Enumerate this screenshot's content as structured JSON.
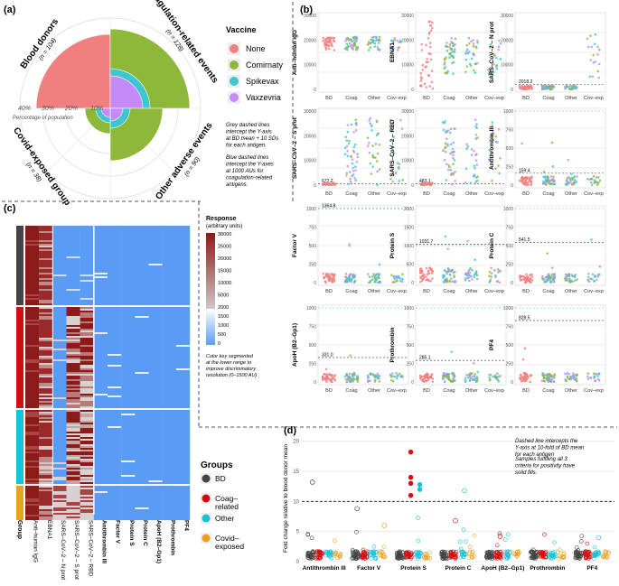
{
  "panel_a": {
    "label": "(a)",
    "sectors": [
      {
        "name": "Blood donors",
        "n": "(n = 104)"
      },
      {
        "name": "Coagulation-related events",
        "n": "(n = 128)"
      },
      {
        "name": "Other adverse events",
        "n": "(n = 90)"
      },
      {
        "name": "Covid-exposed group",
        "n": "(n = 38)"
      }
    ],
    "radial_ticks": [
      "40%",
      "30%",
      "20%",
      "10%"
    ],
    "radial_caption": "Percentage of population",
    "vaccine_legend": {
      "title": "Vaccine",
      "items": [
        {
          "label": "None",
          "color": "#f08080"
        },
        {
          "label": "Comirnaty",
          "color": "#8db83a"
        },
        {
          "label": "Spikevax",
          "color": "#3cc7d0"
        },
        {
          "label": "Vaxzevria",
          "color": "#c58af5"
        }
      ]
    },
    "note_grey": "Grey dashed lines intercept the Y-axis at BD mean + 10 SDs for each antigen.",
    "note_blue": "Blue dashed lines intercept the Y-axes at 1000 AUs for coagulation-related antigens."
  },
  "panel_b": {
    "label": "(b)",
    "x_categories": [
      "BD",
      "Coag",
      "Other",
      "Cov–exp"
    ],
    "facets": [
      {
        "ylabel": "Anti–human IgG",
        "unit": "(AU)",
        "threshold": "",
        "yticks": [
          "0",
          "10000",
          "20000",
          "30000"
        ]
      },
      {
        "ylabel": "EBNA1",
        "unit": "(AU)",
        "threshold": "",
        "yticks": [
          "0",
          "10000",
          "20000",
          "30000"
        ]
      },
      {
        "ylabel": "SARS–CoV–2 – N prot",
        "unit": "(AU)",
        "threshold": "2018.2",
        "yticks": [
          "0",
          "10000",
          "20000",
          "30000"
        ]
      },
      {
        "ylabel": "SARS–CoV–2 – S prot",
        "unit": "(AU)",
        "threshold": "672.2",
        "yticks": [
          "0",
          "10000",
          "20000",
          "30000"
        ]
      },
      {
        "ylabel": "SARS–CoV–2 – RBD",
        "unit": "(AU)",
        "threshold": "483.1",
        "yticks": [
          "0",
          "10000",
          "20000",
          "30000"
        ]
      },
      {
        "ylabel": "Antithrombin III",
        "unit": "(AU)",
        "threshold": "159.4",
        "yticks": [
          "0",
          "250",
          "500",
          "750",
          "1000"
        ]
      },
      {
        "ylabel": "Factor V",
        "unit": "(AU)",
        "threshold": "1364.8",
        "yticks": [
          "0",
          "250",
          "500",
          "750",
          "1000"
        ]
      },
      {
        "ylabel": "Protein S",
        "unit": "(AU)",
        "threshold": "1031.7",
        "yticks": [
          "0",
          "500",
          "1000",
          "1500",
          "2000"
        ]
      },
      {
        "ylabel": "Protein C",
        "unit": "(AU)",
        "threshold": "541.5",
        "yticks": [
          "0",
          "250",
          "500",
          "750",
          "1000"
        ]
      },
      {
        "ylabel": "ApoH (B2–Gp1)",
        "unit": "(AU)",
        "threshold": "331.0",
        "yticks": [
          "0",
          "250",
          "500",
          "750",
          "1000"
        ]
      },
      {
        "ylabel": "Prothrombin",
        "unit": "(AU)",
        "threshold": "285.1",
        "yticks": [
          "0",
          "250",
          "500",
          "750",
          "1000"
        ]
      },
      {
        "ylabel": "PF4",
        "unit": "(AU)",
        "threshold": "828.5",
        "yticks": [
          "0",
          "250",
          "500",
          "750",
          "1000"
        ]
      }
    ]
  },
  "panel_c": {
    "label": "(c)",
    "group_axis": "Group",
    "columns": [
      "Anti–human IgG",
      "EBNA1",
      "SARS–CoV–2 – N prot",
      "SARS–CoV–2 – S prot",
      "SARS–CoV–2 – RBD",
      "Antithrombin III",
      "Factor V",
      "Protein S",
      "Protein C",
      "ApoH (B2–Gp1)",
      "Prothrombin",
      "PF4"
    ],
    "key_title": "Response",
    "key_subtitle": "(arbitrary units)",
    "key_upper_ticks": [
      "30000",
      "25000",
      "20000",
      "15000",
      "10000",
      "5000",
      "2000"
    ],
    "key_lower_ticks": [
      "1500",
      "1000",
      "500",
      "0"
    ],
    "key_note": "Color key segmented at the lower range to improve discriminatory resolution (0–1500 AU)"
  },
  "groups_legend": {
    "title": "Groups",
    "items": [
      {
        "label": "BD",
        "color": "#444444"
      },
      {
        "label": "Coag– related",
        "color": "#d01010"
      },
      {
        "label": "Other",
        "color": "#18c0d8"
      },
      {
        "label": "Covid– exposed",
        "color": "#e8a020"
      }
    ]
  },
  "panel_d": {
    "label": "(d)",
    "ylabel": "Fold change relative to blood donor mean",
    "yticks": [
      "0",
      "5",
      "10",
      "15",
      "20"
    ],
    "categories": [
      "Antithrombin III",
      "Factor V",
      "Protein S",
      "Protein C",
      "ApoH (B2–Gp1)",
      "Prothrombin",
      "PF4"
    ],
    "note1": "Dashed line intercepts the Y-axis at 10-fold of BD mean for each antigen",
    "note2": "Samples fulfilling all 3 criteria for positivity have solid fills."
  },
  "colors": {
    "bd": "#f08080",
    "coag": "#8db83a",
    "other": "#3cc7d0",
    "covexp": "#c58af5",
    "heat_hi": "#8b1a1a",
    "heat_lo": "#5a9cf5"
  }
}
